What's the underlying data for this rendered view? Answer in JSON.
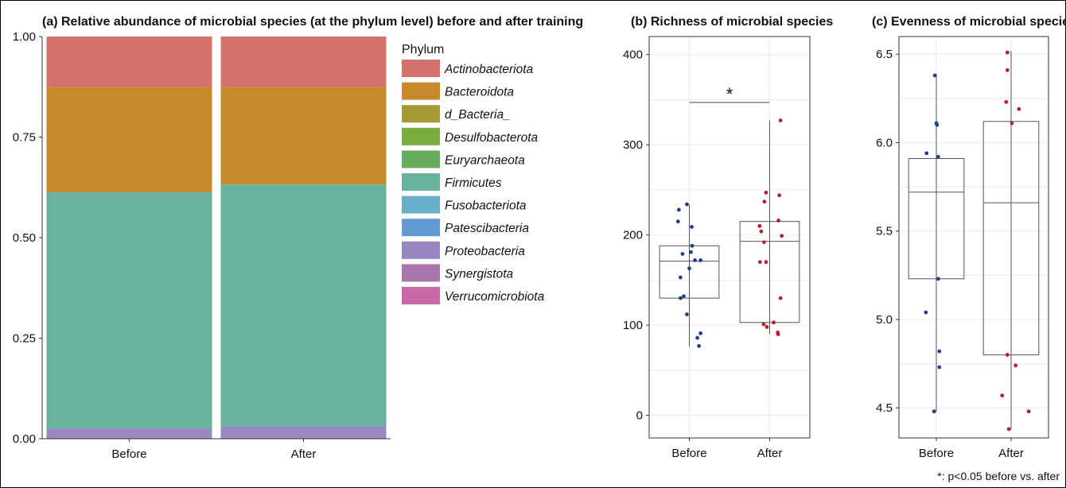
{
  "chart_data": [
    {
      "type": "bar",
      "stacked": true,
      "title": "(a) Relative abundance of microbial species (at the phylum level) before and after training",
      "categories": [
        "Before",
        "After"
      ],
      "ylim": [
        0,
        1
      ],
      "yticks": [
        "0.00",
        "0.25",
        "0.50",
        "0.75",
        "1.00"
      ],
      "legend_title": "Phylum",
      "legend_position": "right",
      "series": [
        {
          "name": "Actinobacteriota",
          "color": "#d4716a",
          "values": [
            0.125,
            0.125
          ]
        },
        {
          "name": "Bacteroidota",
          "color": "#c58a2a",
          "values": [
            0.262,
            0.243
          ]
        },
        {
          "name": "d_Bacteria_",
          "color": "#a69a36",
          "values": [
            0.0,
            0.0
          ]
        },
        {
          "name": "Desulfobacterota",
          "color": "#7aad3d",
          "values": [
            0.0,
            0.0
          ]
        },
        {
          "name": "Euryarchaeota",
          "color": "#65ad5c",
          "values": [
            0.0,
            0.0
          ]
        },
        {
          "name": "Firmicutes",
          "color": "#67b3a0",
          "values": [
            0.588,
            0.601
          ]
        },
        {
          "name": "Fusobacteriota",
          "color": "#67b0cc",
          "values": [
            0.0,
            0.0
          ]
        },
        {
          "name": "Patescibacteria",
          "color": "#6399d4",
          "values": [
            0.0,
            0.0
          ]
        },
        {
          "name": "Proteobacteria",
          "color": "#9887c0",
          "values": [
            0.023,
            0.029
          ]
        },
        {
          "name": "Synergistota",
          "color": "#a976ad",
          "values": [
            0.001,
            0.001
          ]
        },
        {
          "name": "Verrucomicrobiota",
          "color": "#c968a6",
          "values": [
            0.001,
            0.001
          ]
        }
      ]
    },
    {
      "type": "box",
      "title": "(b) Richness of microbial species",
      "categories": [
        "Before",
        "After"
      ],
      "ylim": [
        -25,
        420
      ],
      "yticks": [
        0,
        100,
        200,
        300,
        400
      ],
      "significance": {
        "label": "*",
        "y": 347
      },
      "boxes": [
        {
          "name": "Before",
          "color": "#1f3f8a",
          "whisker_low": 76,
          "q1": 130,
          "median": 171,
          "q3": 188,
          "whisker_high": 234,
          "points": [
            [
              -0.26,
              228
            ],
            [
              -0.06,
              234
            ],
            [
              -0.28,
              215
            ],
            [
              0.06,
              209
            ],
            [
              0.07,
              188
            ],
            [
              -0.17,
              179
            ],
            [
              0.04,
              181
            ],
            [
              0.14,
              172
            ],
            [
              0.28,
              172
            ],
            [
              0.0,
              163
            ],
            [
              -0.22,
              153
            ],
            [
              -0.22,
              130
            ],
            [
              -0.14,
              132
            ],
            [
              -0.06,
              112
            ],
            [
              0.28,
              91
            ],
            [
              0.2,
              86
            ],
            [
              0.24,
              77
            ]
          ]
        },
        {
          "name": "After",
          "color": "#b52030",
          "whisker_low": 90,
          "q1": 103,
          "median": 193,
          "q3": 215,
          "whisker_high": 327,
          "points": [
            [
              0.27,
              327
            ],
            [
              -0.09,
              247
            ],
            [
              0.24,
              244
            ],
            [
              -0.13,
              237
            ],
            [
              0.22,
              216
            ],
            [
              -0.25,
              210
            ],
            [
              -0.21,
              204
            ],
            [
              0.3,
              199
            ],
            [
              -0.14,
              192
            ],
            [
              -0.24,
              170
            ],
            [
              -0.09,
              170
            ],
            [
              0.27,
              130
            ],
            [
              0.1,
              103
            ],
            [
              -0.15,
              101
            ],
            [
              -0.07,
              98
            ],
            [
              0.2,
              92
            ],
            [
              0.21,
              90
            ]
          ]
        }
      ]
    },
    {
      "type": "box",
      "title": "(c) Evenness of microbial species",
      "categories": [
        "Before",
        "After"
      ],
      "ylim": [
        4.33,
        6.6
      ],
      "yticks": [
        "4.5",
        "5.0",
        "5.5",
        "6.0",
        "6.5"
      ],
      "boxes": [
        {
          "name": "Before",
          "color": "#1f3f8a",
          "whisker_low": 4.48,
          "q1": 5.23,
          "median": 5.72,
          "q3": 5.91,
          "whisker_high": 6.39,
          "points": [
            [
              -0.04,
              6.38
            ],
            [
              0.0,
              6.11
            ],
            [
              0.02,
              6.1
            ],
            [
              -0.26,
              5.94
            ],
            [
              0.05,
              5.92
            ],
            [
              0.05,
              5.23
            ],
            [
              -0.28,
              5.04
            ],
            [
              0.08,
              4.82
            ],
            [
              0.08,
              4.73
            ],
            [
              -0.06,
              4.48
            ]
          ]
        },
        {
          "name": "After",
          "color": "#b52030",
          "whisker_low": 4.38,
          "q1": 4.8,
          "median": 5.66,
          "q3": 6.12,
          "whisker_high": 6.52,
          "points": [
            [
              -0.1,
              6.51
            ],
            [
              -0.1,
              6.41
            ],
            [
              -0.13,
              6.23
            ],
            [
              0.21,
              6.19
            ],
            [
              0.02,
              6.11
            ],
            [
              -0.1,
              4.8
            ],
            [
              0.12,
              4.74
            ],
            [
              -0.24,
              4.57
            ],
            [
              -0.06,
              4.38
            ],
            [
              0.47,
              4.48
            ]
          ]
        }
      ]
    }
  ],
  "footnote": "*: p<0.05 before vs. after"
}
